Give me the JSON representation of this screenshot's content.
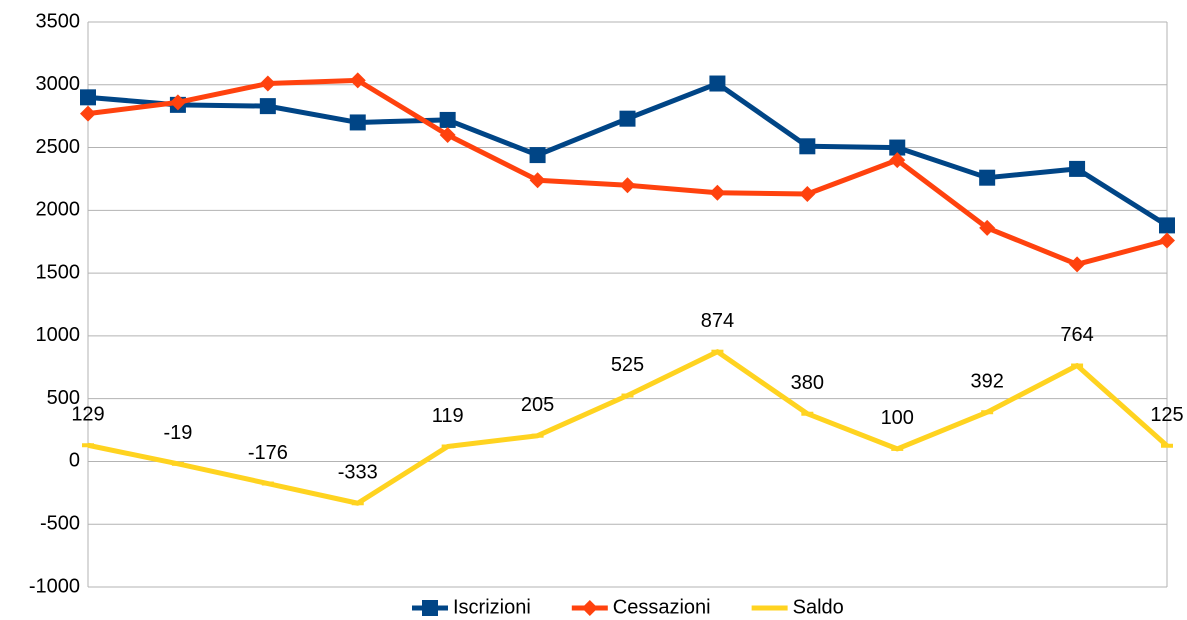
{
  "chart_data": {
    "type": "line",
    "categories": [
      null,
      null,
      null,
      null,
      null,
      null,
      null,
      null,
      null,
      null,
      null,
      null,
      null
    ],
    "series": [
      {
        "name": "Iscrizioni",
        "color": "#004586",
        "marker": "square",
        "values": [
          2900,
          2840,
          2830,
          2700,
          2720,
          2440,
          2730,
          3010,
          2510,
          2500,
          2260,
          2330,
          1880
        ]
      },
      {
        "name": "Cessazioni",
        "color": "#ff420e",
        "marker": "diamond",
        "values": [
          2770,
          2860,
          3010,
          3035,
          2600,
          2240,
          2200,
          2140,
          2130,
          2400,
          1860,
          1570,
          1760
        ]
      },
      {
        "name": "Saldo",
        "color": "#ffd320",
        "marker": "none",
        "data_labels": true,
        "values": [
          129,
          -19,
          -176,
          -333,
          119,
          205,
          525,
          874,
          380,
          100,
          392,
          764,
          125
        ]
      }
    ],
    "ylim": [
      -1000,
      3500
    ],
    "yticks": [
      -1000,
      -500,
      0,
      500,
      1000,
      1500,
      2000,
      2500,
      3000,
      3500
    ],
    "grid": true,
    "legend": "bottom"
  }
}
